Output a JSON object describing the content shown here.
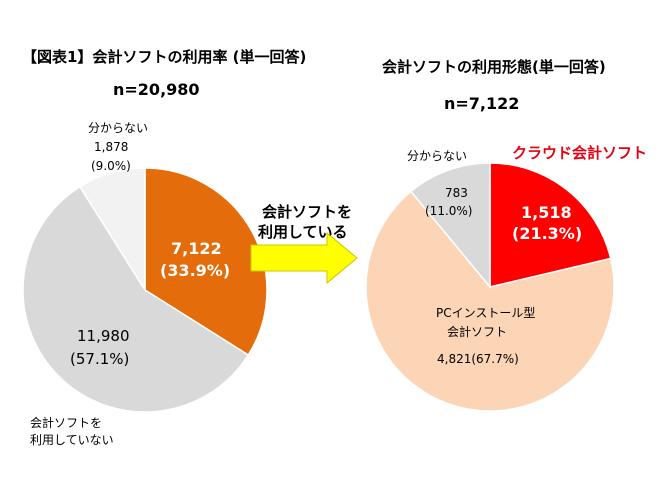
{
  "left_chart": {
    "title": "【図表1】会計ソフトの利用率 (単一回答)",
    "n_label": "n=20,980"
  },
  "right_chart": {
    "title": "会計ソフトの利用形態(単一回答)",
    "n_label": "n=7,122"
  },
  "arrow": {
    "line1": "会計ソフトを",
    "line2": "利用している"
  },
  "labels": {
    "left_using_value": "7,122",
    "left_using_pct": "(33.9%)",
    "left_notusing_value": "11,980",
    "left_notusing_pct": "(57.1%)",
    "left_notusing_cat1": "会計ソフトを",
    "left_notusing_cat2": "利用していない",
    "left_unknown_cat": "分からない",
    "left_unknown_value": "1,878",
    "left_unknown_pct": "(9.0%)",
    "right_cloud_cat": "クラウド会計ソフト",
    "right_cloud_value": "1,518",
    "right_cloud_pct": "(21.3%)",
    "right_unknown_cat": "分からない",
    "right_unknown_value": "783",
    "right_unknown_pct": "(11.0%)",
    "right_pc_cat1": "PCインストール型",
    "right_pc_cat2": "会計ソフト",
    "right_pc_value": "4,821(67.7%)"
  },
  "colors": {
    "using": "#e46c0a",
    "not_using": "#d9d9d9",
    "left_unknown": "#f2f2f2",
    "cloud": "#ff0000",
    "pc_install": "#fbd5b5",
    "right_unknown": "#d9d9d9",
    "arrow_fill": "#ffff00",
    "arrow_stroke": "#c8c800",
    "slice_border": "#ffffff",
    "cloud_text": "#e60012"
  },
  "chart_data": [
    {
      "type": "pie",
      "title": "【図表1】会計ソフトの利用率 (単一回答)",
      "subtitle": "n=20,980",
      "slices": [
        {
          "label": "会計ソフトを利用している",
          "value": 7122,
          "percent": 33.9
        },
        {
          "label": "会計ソフトを利用していない",
          "value": 11980,
          "percent": 57.1
        },
        {
          "label": "分からない",
          "value": 1878,
          "percent": 9.0
        }
      ]
    },
    {
      "type": "pie",
      "title": "会計ソフトの利用形態(単一回答)",
      "subtitle": "n=7,122",
      "slices": [
        {
          "label": "クラウド会計ソフト",
          "value": 1518,
          "percent": 21.3
        },
        {
          "label": "PCインストール型会計ソフト",
          "value": 4821,
          "percent": 67.7
        },
        {
          "label": "分からない",
          "value": 783,
          "percent": 11.0
        }
      ]
    }
  ]
}
